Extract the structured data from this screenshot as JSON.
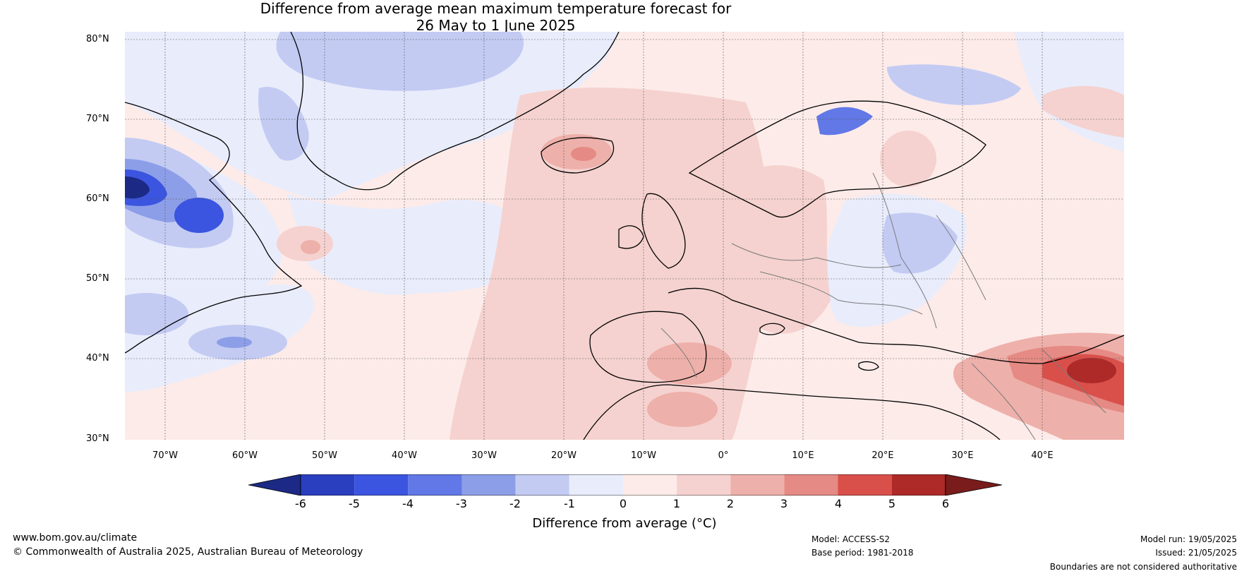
{
  "title": {
    "line1": "Difference from average mean maximum temperature forecast for",
    "line2": "26 May to 1 June 2025"
  },
  "map": {
    "lat_labels": [
      "80°N",
      "70°N",
      "60°N",
      "50°N",
      "40°N",
      "30°N"
    ],
    "lon_labels": [
      "70°W",
      "60°W",
      "50°W",
      "40°W",
      "30°W",
      "20°W",
      "10°W",
      "0°",
      "10°E",
      "20°E",
      "30°E",
      "40°E"
    ],
    "colors": {
      "n6": "#1c2a85",
      "n5": "#2a3fbf",
      "n4": "#3b55e0",
      "n3": "#6178e6",
      "n2": "#8d9ee8",
      "n1": "#c3cbf3",
      "z0": "#e9ecfb",
      "p1": "#fcebe9",
      "p2": "#f5d2cf",
      "p3": "#eeb0aa",
      "p4": "#e58a84",
      "p5": "#d9504a",
      "p6": "#ad2a29",
      "p7": "#7a1c1c"
    }
  },
  "colorbar": {
    "ticks": [
      "-6",
      "-5",
      "-4",
      "-3",
      "-2",
      "-1",
      "0",
      "1",
      "2",
      "3",
      "4",
      "5",
      "6"
    ],
    "label": "Difference from average (°C)"
  },
  "footer": {
    "website": "www.bom.gov.au/climate",
    "copyright": "© Commonwealth of Australia 2025, Australian Bureau of Meteorology",
    "model": "Model: ACCESS-S2",
    "base_period": "Base period: 1981-2018",
    "model_run": "Model run: 19/05/2025",
    "issued": "Issued: 21/05/2025",
    "disclaimer": "Boundaries are not considered authoritative"
  }
}
